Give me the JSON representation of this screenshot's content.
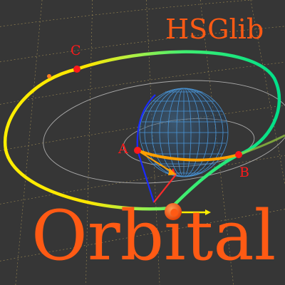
{
  "brand": "HSGlib",
  "title": "Orbital",
  "points": [
    {
      "id": "a",
      "label": "A"
    },
    {
      "id": "b",
      "label": "B"
    },
    {
      "id": "c",
      "label": "C"
    }
  ],
  "colors": {
    "background": "#363636",
    "text": "#ff5a14",
    "point": "#ff1a1a",
    "globe": "#4a95d6",
    "grid": "#b8a05a",
    "orbit_ring": "#d0d0d0",
    "orbit_gradient": [
      "#ffee00",
      "#ffe600",
      "#b8f040",
      "#40ee70",
      "#00e08a"
    ],
    "transfer_arc": "#ffa000",
    "velocity_blue": "#1a2bff",
    "velocity_red": "#ff2a2a",
    "planet": "#ff5a14"
  },
  "icons": [
    "planet-icon",
    "globe-icon"
  ]
}
